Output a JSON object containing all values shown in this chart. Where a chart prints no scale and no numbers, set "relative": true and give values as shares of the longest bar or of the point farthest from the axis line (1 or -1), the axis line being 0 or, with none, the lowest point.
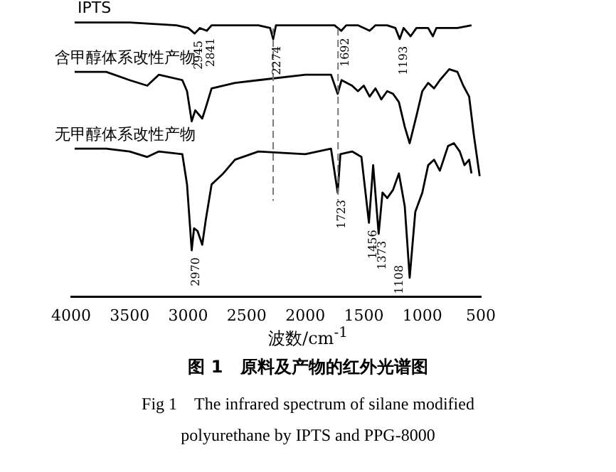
{
  "chart_data": {
    "type": "line",
    "title": "图 1　原料及产物的红外光谱图",
    "subtitle": "Fig 1　The infrared spectrum of silane modified polyurethane by IPTS and PPG-8000",
    "xlabel": "波数/cm$^{-1}$",
    "relative": true,
    "xlim": [
      4000,
      500
    ],
    "xticks": [
      4000,
      3500,
      3000,
      2500,
      2000,
      1500,
      1000,
      500
    ],
    "grid": false,
    "legend": false,
    "marker": "none",
    "line_style": "solid",
    "series": [
      {
        "name": "IPTS",
        "color": "#000000",
        "x": [
          3970,
          3500,
          3100,
          3000,
          2945,
          2900,
          2841,
          2800,
          2400,
          2300,
          2274,
          2250,
          2000,
          1750,
          1692,
          1650,
          1550,
          1450,
          1400,
          1300,
          1230,
          1193,
          1160,
          1100,
          1050,
          950,
          910,
          880,
          800,
          700,
          580
        ],
        "values": [
          1.0,
          1.0,
          0.99,
          0.98,
          0.96,
          0.98,
          0.97,
          0.99,
          0.99,
          0.98,
          0.94,
          0.99,
          0.99,
          0.99,
          0.97,
          0.99,
          0.99,
          0.97,
          0.99,
          0.99,
          0.98,
          0.94,
          0.98,
          0.95,
          0.98,
          0.98,
          0.95,
          0.98,
          0.98,
          0.98,
          0.99
        ]
      },
      {
        "name": "含甲醇体系改性产物",
        "color": "#000000",
        "x": [
          3970,
          3700,
          3500,
          3350,
          3250,
          3050,
          3010,
          2970,
          2940,
          2880,
          2850,
          2800,
          2600,
          2400,
          2000,
          1780,
          1723,
          1690,
          1600,
          1550,
          1500,
          1450,
          1400,
          1350,
          1300,
          1250,
          1200,
          1150,
          1108,
          1050,
          1000,
          950,
          900,
          850,
          770,
          700,
          650,
          600,
          560,
          510
        ],
        "values": [
          0.82,
          0.82,
          0.79,
          0.77,
          0.81,
          0.79,
          0.75,
          0.64,
          0.68,
          0.65,
          0.69,
          0.76,
          0.78,
          0.79,
          0.81,
          0.81,
          0.74,
          0.79,
          0.77,
          0.75,
          0.77,
          0.73,
          0.76,
          0.72,
          0.75,
          0.74,
          0.71,
          0.62,
          0.56,
          0.66,
          0.75,
          0.78,
          0.76,
          0.79,
          0.83,
          0.82,
          0.77,
          0.73,
          0.59,
          0.44
        ]
      },
      {
        "name": "无甲醇体系改性产物",
        "color": "#000000",
        "x": [
          3970,
          3700,
          3500,
          3350,
          3250,
          3050,
          3010,
          2970,
          2950,
          2920,
          2880,
          2850,
          2800,
          2700,
          2600,
          2400,
          2000,
          1780,
          1723,
          1700,
          1600,
          1520,
          1456,
          1420,
          1373,
          1340,
          1300,
          1250,
          1200,
          1150,
          1108,
          1060,
          1000,
          950,
          900,
          850,
          780,
          730,
          680,
          640,
          600,
          580
        ],
        "values": [
          0.54,
          0.54,
          0.53,
          0.51,
          0.53,
          0.52,
          0.41,
          0.17,
          0.25,
          0.24,
          0.19,
          0.28,
          0.41,
          0.45,
          0.5,
          0.53,
          0.52,
          0.54,
          0.38,
          0.52,
          0.53,
          0.51,
          0.27,
          0.48,
          0.23,
          0.38,
          0.36,
          0.39,
          0.45,
          0.33,
          0.07,
          0.31,
          0.38,
          0.48,
          0.5,
          0.46,
          0.55,
          0.56,
          0.53,
          0.48,
          0.5,
          0.45
        ]
      }
    ],
    "ref_lines": [
      {
        "axis": "x",
        "value": 2274,
        "line_style": "dashed"
      },
      {
        "axis": "x",
        "value": 1720,
        "line_style": "dashed"
      }
    ],
    "annotations": [
      {
        "text": "2945",
        "x": 2945,
        "y": 0.96
      },
      {
        "text": "2841",
        "x": 2841,
        "y": 0.97
      },
      {
        "text": "2274",
        "x": 2274,
        "y": 0.94
      },
      {
        "text": "1692",
        "x": 1692,
        "y": 0.97
      },
      {
        "text": "1193",
        "x": 1193,
        "y": 0.94
      },
      {
        "text": "2970",
        "x": 2970,
        "y": 0.17
      },
      {
        "text": "1723",
        "x": 1723,
        "y": 0.38
      },
      {
        "text": "1456",
        "x": 1456,
        "y": 0.27
      },
      {
        "text": "1373",
        "x": 1373,
        "y": 0.23
      },
      {
        "text": "1108",
        "x": 1108,
        "y": 0.07
      }
    ]
  }
}
